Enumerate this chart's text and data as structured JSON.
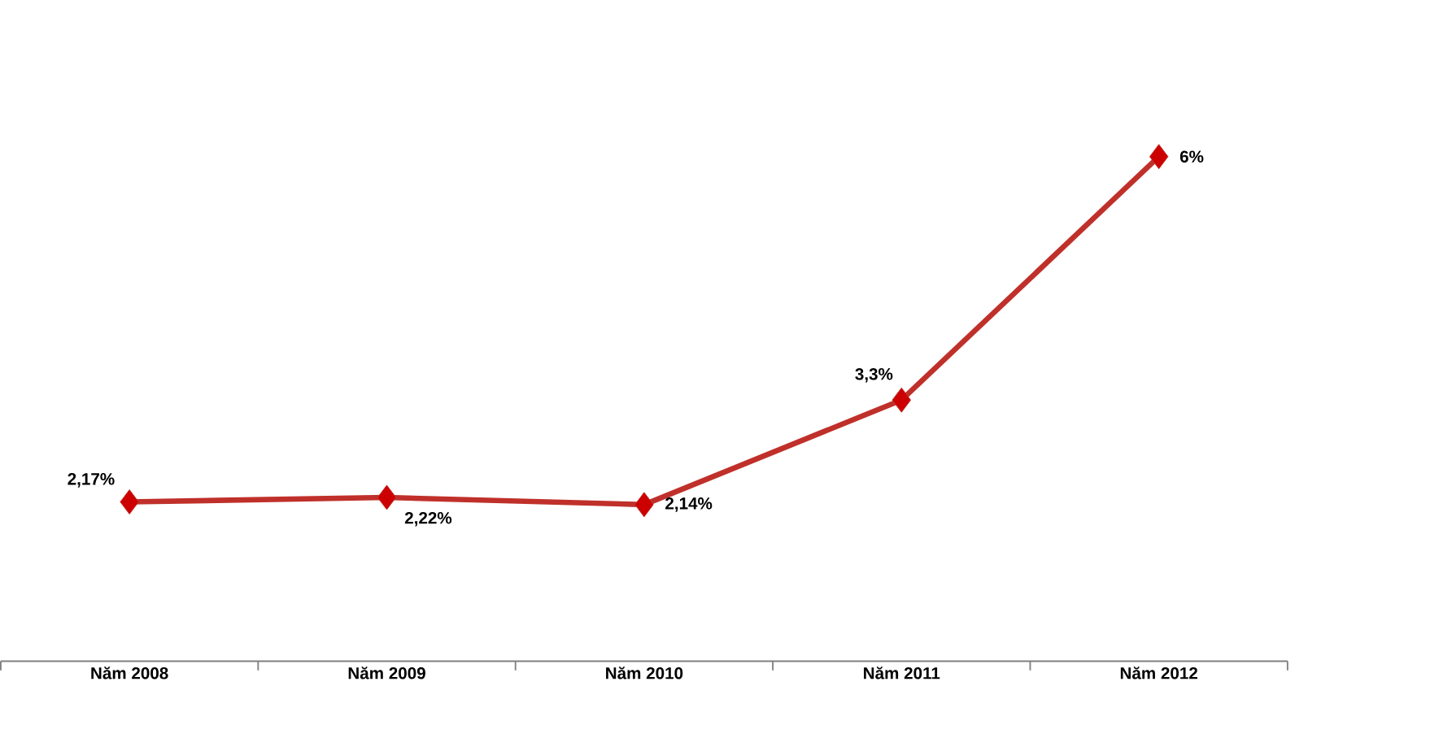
{
  "chart_data": {
    "type": "line",
    "categories": [
      "Năm 2008",
      "Năm 2009",
      "Năm 2010",
      "Năm 2011",
      "Năm 2012"
    ],
    "values": [
      2.17,
      2.22,
      2.14,
      3.3,
      6
    ],
    "value_labels": [
      "2,17%",
      "2,22%",
      "2,14%",
      "3,3%",
      "6%"
    ],
    "color": "#c0302a",
    "marker": "diamond"
  }
}
